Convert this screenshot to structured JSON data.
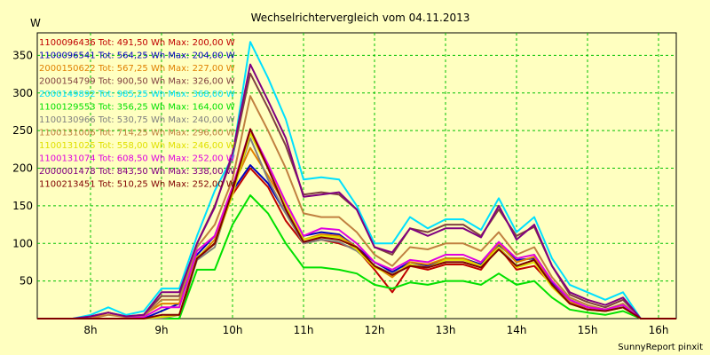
{
  "chart_data": {
    "type": "line",
    "title": "Wechselrichtervergleich vom 04.11.2013",
    "ylabel": "W",
    "footer": "SunnyReport pinxit",
    "ylim": [
      0,
      380
    ],
    "xlim": [
      7.25,
      16.25
    ],
    "grid": true,
    "legend_position": "top-left",
    "x_ticks": [
      8,
      9,
      10,
      11,
      12,
      13,
      14,
      15,
      16
    ],
    "x_tick_labels": [
      "8h",
      "9h",
      "10h",
      "11h",
      "12h",
      "13h",
      "14h",
      "15h",
      "16h"
    ],
    "y_ticks": [
      50,
      100,
      150,
      200,
      250,
      300,
      350
    ],
    "y_tick_labels": [
      "50",
      "100",
      "150",
      "200",
      "250",
      "300",
      "350"
    ],
    "x": [
      7.25,
      7.5,
      7.75,
      8.0,
      8.25,
      8.5,
      8.75,
      9.0,
      9.25,
      9.5,
      9.75,
      10.0,
      10.25,
      10.5,
      10.75,
      11.0,
      11.25,
      11.5,
      11.75,
      12.0,
      12.25,
      12.5,
      12.75,
      13.0,
      13.25,
      13.5,
      13.75,
      14.0,
      14.25,
      14.5,
      14.75,
      15.0,
      15.25,
      15.5,
      15.75,
      16.0,
      16.25
    ],
    "series": [
      {
        "name": "1100096436 Tot: 491,50 Wh Max: 200,00 W",
        "color": "#c00000",
        "values": [
          0,
          0,
          0,
          0,
          0,
          0,
          0,
          0,
          0,
          80,
          100,
          165,
          200,
          175,
          130,
          100,
          105,
          100,
          92,
          65,
          35,
          70,
          65,
          72,
          72,
          65,
          95,
          65,
          70,
          45,
          20,
          15,
          10,
          15,
          0,
          0,
          0
        ]
      },
      {
        "name": "1100096541 Tot: 564,25 Wh Max: 204,00 W",
        "color": "#0000c0",
        "values": [
          0,
          0,
          0,
          0,
          0,
          0,
          0,
          10,
          20,
          85,
          110,
          170,
          204,
          180,
          140,
          110,
          115,
          112,
          95,
          75,
          62,
          75,
          70,
          80,
          80,
          72,
          98,
          78,
          80,
          48,
          25,
          15,
          12,
          18,
          0,
          0,
          0
        ]
      },
      {
        "name": "2000150622 Tot: 567,25 Wh Max: 227,00 W",
        "color": "#e08000",
        "values": [
          0,
          0,
          0,
          0,
          8,
          2,
          5,
          20,
          20,
          80,
          105,
          175,
          227,
          190,
          150,
          105,
          112,
          110,
          95,
          70,
          55,
          75,
          72,
          80,
          80,
          70,
          100,
          75,
          82,
          45,
          22,
          15,
          12,
          18,
          0,
          0,
          0
        ]
      },
      {
        "name": "2000154799 Tot: 900,50 Wh Max: 326,00 W",
        "color": "#804040",
        "values": [
          0,
          0,
          0,
          3,
          8,
          3,
          5,
          30,
          30,
          100,
          150,
          215,
          326,
          280,
          230,
          165,
          168,
          165,
          145,
          95,
          85,
          120,
          115,
          125,
          125,
          110,
          145,
          110,
          122,
          70,
          32,
          22,
          15,
          25,
          0,
          0,
          0
        ]
      },
      {
        "name": "2000149892 Tot: 985,25 Wh Max: 368,00 W",
        "color": "#00e0ff",
        "values": [
          0,
          0,
          0,
          5,
          15,
          5,
          10,
          40,
          40,
          110,
          170,
          215,
          368,
          320,
          265,
          185,
          188,
          185,
          150,
          100,
          100,
          135,
          120,
          132,
          132,
          118,
          160,
          115,
          135,
          80,
          45,
          35,
          25,
          35,
          0,
          0,
          0
        ]
      },
      {
        "name": "1100129553 Tot: 356,25 Wh Max: 164,00 W",
        "color": "#00e000",
        "values": [
          0,
          0,
          0,
          0,
          0,
          0,
          0,
          0,
          0,
          65,
          65,
          125,
          164,
          140,
          100,
          68,
          68,
          65,
          60,
          45,
          40,
          48,
          45,
          50,
          50,
          45,
          60,
          45,
          50,
          28,
          12,
          8,
          5,
          10,
          0,
          0,
          0
        ]
      },
      {
        "name": "1100130966 Tot: 530,75 Wh Max: 240,00 W",
        "color": "#808080",
        "values": [
          0,
          0,
          0,
          0,
          0,
          0,
          0,
          0,
          5,
          78,
          95,
          170,
          240,
          185,
          140,
          100,
          105,
          102,
          90,
          70,
          60,
          70,
          68,
          75,
          75,
          68,
          95,
          70,
          78,
          45,
          20,
          12,
          10,
          15,
          0,
          0,
          0
        ]
      },
      {
        "name": "1100131006 Tot: 714,25 Wh Max: 296,00 W",
        "color": "#c08040",
        "values": [
          0,
          0,
          0,
          0,
          5,
          2,
          3,
          25,
          25,
          95,
          125,
          185,
          296,
          250,
          200,
          140,
          135,
          135,
          115,
          85,
          70,
          95,
          92,
          100,
          100,
          90,
          115,
          85,
          95,
          55,
          28,
          18,
          12,
          20,
          0,
          0,
          0
        ]
      },
      {
        "name": "1100131025 Tot: 558,00 Wh Max: 246,00 W",
        "color": "#e0e000",
        "values": [
          0,
          0,
          0,
          0,
          0,
          0,
          0,
          2,
          5,
          82,
          100,
          165,
          246,
          200,
          150,
          105,
          110,
          108,
          92,
          68,
          58,
          72,
          68,
          78,
          78,
          70,
          95,
          68,
          75,
          42,
          20,
          12,
          10,
          15,
          0,
          0,
          0
        ]
      },
      {
        "name": "1100131074 Tot: 608,50 Wh Max: 252,00 W",
        "color": "#e000e0",
        "values": [
          0,
          0,
          0,
          0,
          0,
          0,
          2,
          15,
          15,
          90,
          110,
          175,
          252,
          205,
          155,
          110,
          120,
          118,
          100,
          75,
          65,
          78,
          75,
          85,
          85,
          75,
          102,
          80,
          85,
          50,
          25,
          15,
          12,
          18,
          0,
          0,
          0
        ]
      },
      {
        "name": "2000001478 Tot: 843,50 Wh Max: 338,00 W",
        "color": "#800080",
        "values": [
          0,
          0,
          0,
          3,
          8,
          3,
          5,
          35,
          35,
          100,
          148,
          220,
          338,
          290,
          240,
          162,
          165,
          168,
          145,
          95,
          88,
          120,
          110,
          120,
          120,
          108,
          150,
          105,
          125,
          70,
          35,
          25,
          18,
          28,
          0,
          0,
          0
        ]
      },
      {
        "name": "1100213451 Tot: 510,25 Wh Max: 252,00 W",
        "color": "#800000",
        "values": [
          0,
          0,
          0,
          0,
          0,
          0,
          0,
          5,
          5,
          80,
          100,
          170,
          252,
          200,
          145,
          102,
          108,
          105,
          95,
          70,
          58,
          70,
          68,
          75,
          75,
          68,
          92,
          70,
          78,
          45,
          20,
          12,
          10,
          15,
          0,
          0,
          0
        ]
      }
    ]
  }
}
